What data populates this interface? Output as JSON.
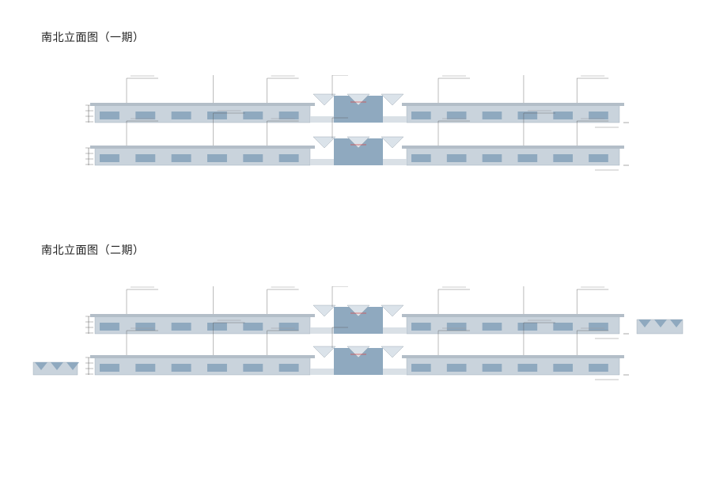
{
  "sections": [
    {
      "title": "南北立面图（一期）"
    },
    {
      "title": "南北立面图（二期）"
    }
  ],
  "colors": {
    "glass": "#8fa9bf",
    "facade": "#c9d3dc",
    "roof": "#b3bec8",
    "leader": "#555555",
    "highlight": "#d94a4a"
  }
}
